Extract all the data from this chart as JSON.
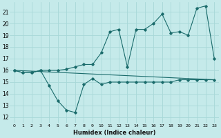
{
  "xlabel": "Humidex (Indice chaleur)",
  "bg_color": "#c5eaea",
  "line_color": "#1a6b6b",
  "grid_color": "#a8d8d8",
  "xlim": [
    -0.5,
    23.5
  ],
  "ylim": [
    11.5,
    21.8
  ],
  "yticks": [
    12,
    13,
    14,
    15,
    16,
    17,
    18,
    19,
    20,
    21
  ],
  "xticks": [
    0,
    1,
    2,
    3,
    4,
    5,
    6,
    7,
    8,
    9,
    10,
    11,
    12,
    13,
    14,
    15,
    16,
    17,
    18,
    19,
    20,
    21,
    22,
    23
  ],
  "xtick_labels": [
    "0",
    "1",
    "2",
    "3",
    "4",
    "5",
    "6",
    "7",
    "8",
    "9",
    "10",
    "11",
    "12",
    "13",
    "14",
    "15",
    "16",
    "17",
    "18",
    "19",
    "20",
    "21",
    "22",
    "23"
  ],
  "line1_x": [
    0,
    1,
    2,
    3,
    4,
    5,
    6,
    7,
    8,
    9,
    10,
    11,
    12,
    13,
    14,
    15,
    16,
    17,
    18,
    19,
    20,
    21,
    22,
    23
  ],
  "line1_y": [
    16.0,
    15.8,
    15.8,
    16.0,
    14.7,
    13.4,
    12.6,
    12.4,
    14.8,
    15.3,
    14.8,
    15.0,
    15.0,
    15.0,
    15.0,
    15.0,
    15.0,
    15.0,
    15.0,
    15.2,
    15.2,
    15.2,
    15.2,
    15.2
  ],
  "line2_x": [
    0,
    1,
    2,
    3,
    4,
    5,
    6,
    7,
    8,
    9,
    10,
    11,
    12,
    13,
    14,
    15,
    16,
    17,
    18,
    19,
    20,
    21,
    22,
    23
  ],
  "line2_y": [
    16.0,
    15.8,
    15.8,
    16.0,
    16.0,
    16.0,
    16.1,
    16.3,
    16.5,
    16.5,
    17.5,
    19.3,
    19.5,
    16.3,
    19.5,
    19.5,
    20.0,
    20.8,
    19.2,
    19.3,
    19.0,
    21.3,
    21.5,
    17.0
  ],
  "line3_x": [
    0,
    23
  ],
  "line3_y": [
    16.0,
    15.2
  ]
}
